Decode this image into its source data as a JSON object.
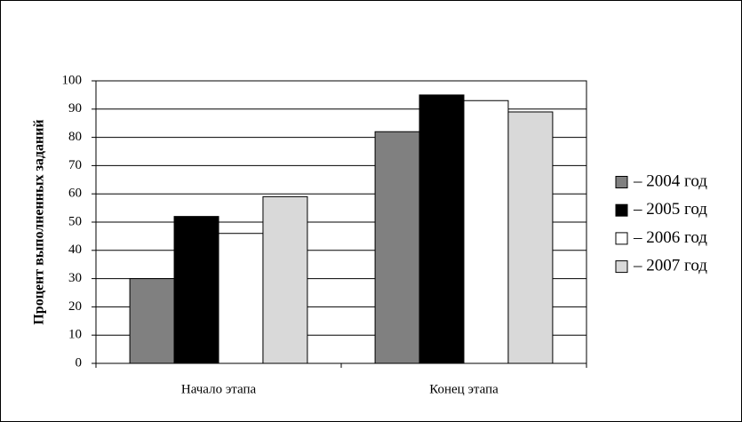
{
  "chart_data": {
    "type": "bar",
    "y_label": "Процент выполненных заданий",
    "categories": [
      "Начало этапа",
      "Конец этапа"
    ],
    "series": [
      {
        "name": "– 2004 год",
        "color": "#808080",
        "values": [
          30,
          82
        ]
      },
      {
        "name": "– 2005 год",
        "color": "#000000",
        "values": [
          52,
          95
        ]
      },
      {
        "name": "– 2006 год",
        "color": "#ffffff",
        "values": [
          46,
          93
        ]
      },
      {
        "name": "– 2007 год",
        "color": "#d9d9d9",
        "values": [
          59,
          89
        ]
      }
    ],
    "ylim": [
      0,
      100
    ],
    "yticks": [
      0,
      10,
      20,
      30,
      40,
      50,
      60,
      70,
      80,
      90,
      100
    ],
    "grid": true,
    "legend": "right"
  }
}
